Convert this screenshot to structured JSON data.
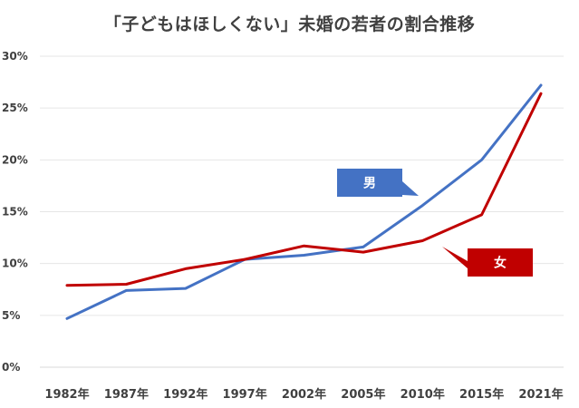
{
  "chart_data": {
    "type": "line",
    "title": "「子どもはほしくない」未婚の若者の割合推移",
    "categories": [
      "1982年",
      "1987年",
      "1992年",
      "1997年",
      "2002年",
      "2005年",
      "2010年",
      "2015年",
      "2021年"
    ],
    "series": [
      {
        "name": "男",
        "color": "#4472C4",
        "values": [
          4.7,
          7.4,
          7.6,
          10.4,
          10.8,
          11.6,
          15.6,
          20.0,
          27.2
        ]
      },
      {
        "name": "女",
        "color": "#C00000",
        "values": [
          7.9,
          8.0,
          9.5,
          10.4,
          11.7,
          11.1,
          12.2,
          14.7,
          26.4
        ]
      }
    ],
    "yticks": [
      "0%",
      "5%",
      "10%",
      "15%",
      "20%",
      "25%",
      "30%"
    ],
    "ylim": [
      0,
      30
    ],
    "grid": true,
    "legend": "callouts"
  }
}
